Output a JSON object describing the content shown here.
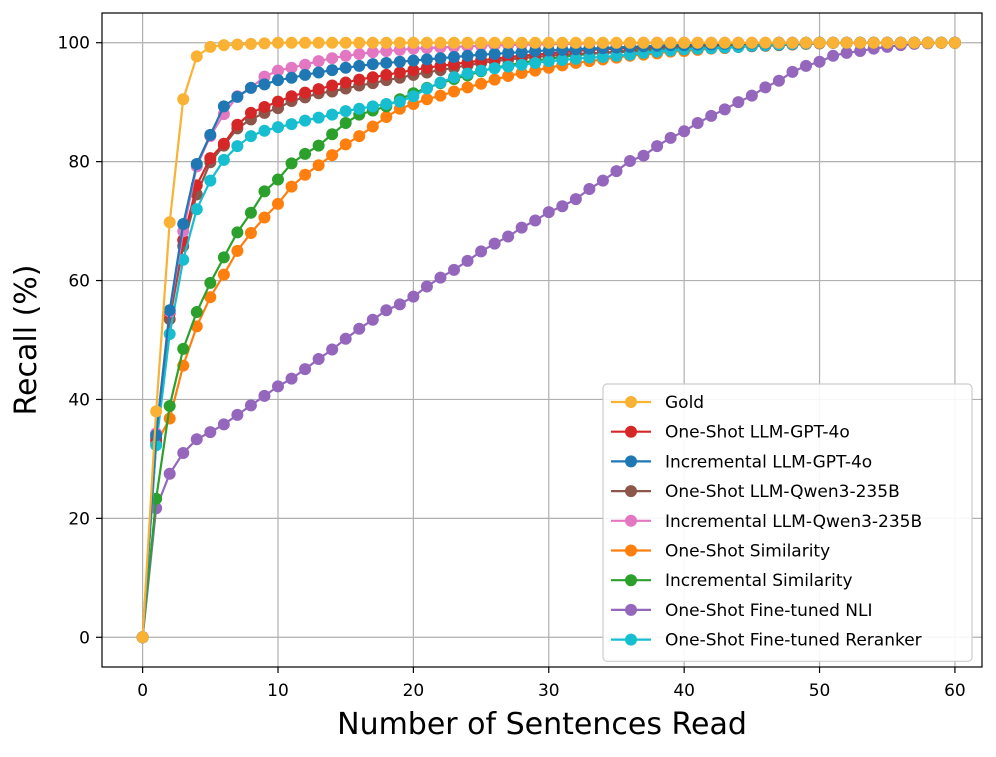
{
  "chart_data": {
    "type": "line",
    "title": "",
    "xlabel": "Number of Sentences Read",
    "ylabel": "Recall (%)",
    "xlim": [
      -3,
      62
    ],
    "ylim": [
      -5,
      105
    ],
    "xticks": [
      0,
      10,
      20,
      30,
      40,
      50,
      60
    ],
    "yticks": [
      0,
      20,
      40,
      60,
      80,
      100
    ],
    "grid": true,
    "legend_position": "lower-right",
    "series": [
      {
        "name": "One-Shot Fine-tuned NLI",
        "color": "#9467bd",
        "x": [
          0,
          1,
          2,
          3,
          4,
          5,
          6,
          7,
          8,
          9,
          10,
          11,
          12,
          13,
          14,
          15,
          16,
          17,
          18,
          19,
          20,
          21,
          22,
          23,
          24,
          25,
          26,
          27,
          28,
          29,
          30,
          31,
          32,
          33,
          34,
          35,
          36,
          37,
          38,
          39,
          40,
          41,
          42,
          43,
          44,
          45,
          46,
          47,
          48,
          49,
          50,
          51,
          52,
          53,
          54,
          55,
          56,
          57,
          58,
          59,
          60
        ],
        "y": [
          0,
          21.7,
          27.5,
          31.0,
          33.3,
          34.5,
          35.8,
          37.4,
          39.0,
          40.6,
          42.2,
          43.5,
          45.1,
          46.8,
          48.4,
          50.2,
          51.9,
          53.4,
          55.0,
          56.0,
          57.3,
          59.0,
          60.5,
          61.8,
          63.3,
          64.9,
          66.2,
          67.4,
          68.9,
          70.1,
          71.5,
          72.5,
          73.7,
          75.4,
          76.8,
          78.4,
          80.1,
          81.0,
          82.6,
          84.0,
          85.1,
          86.5,
          87.7,
          88.8,
          90.0,
          91.1,
          92.5,
          93.6,
          95.1,
          96.1,
          96.8,
          97.8,
          98.3,
          98.6,
          99.0,
          99.3,
          99.6,
          99.8,
          99.9,
          100,
          100
        ]
      },
      {
        "name": "One-Shot Similarity",
        "color": "#ff7f0e",
        "x": [
          0,
          1,
          2,
          3,
          4,
          5,
          6,
          7,
          8,
          9,
          10,
          11,
          12,
          13,
          14,
          15,
          16,
          17,
          18,
          19,
          20,
          21,
          22,
          23,
          24,
          25,
          26,
          27,
          28,
          29,
          30,
          31,
          32,
          33,
          34,
          35,
          36,
          37,
          38,
          39,
          40,
          41,
          42,
          43,
          44,
          45,
          46,
          47,
          48,
          49,
          50,
          51,
          52,
          53,
          54,
          55,
          56,
          57,
          58,
          59,
          60
        ],
        "y": [
          0,
          32.5,
          36.8,
          45.7,
          52.3,
          57.2,
          61.0,
          65.0,
          68.0,
          70.6,
          72.9,
          75.8,
          77.8,
          79.4,
          81.1,
          82.9,
          84.3,
          85.9,
          87.5,
          88.9,
          89.7,
          90.5,
          91.1,
          91.8,
          92.5,
          93.1,
          93.8,
          94.4,
          94.9,
          95.3,
          95.8,
          96.2,
          96.6,
          96.9,
          97.2,
          97.5,
          97.8,
          98.0,
          98.2,
          98.5,
          98.6,
          98.8,
          99.0,
          99.1,
          99.3,
          99.5,
          99.6,
          99.7,
          99.8,
          99.9,
          100,
          100,
          100,
          100,
          100,
          100,
          100,
          100,
          100,
          100,
          100
        ]
      },
      {
        "name": "Incremental Similarity",
        "color": "#2ca02c",
        "x": [
          0,
          1,
          2,
          3,
          4,
          5,
          6,
          7,
          8,
          9,
          10,
          11,
          12,
          13,
          14,
          15,
          16,
          17,
          18,
          19,
          20,
          21,
          22,
          23,
          24,
          25,
          26,
          27,
          28,
          29,
          30,
          31,
          32,
          33,
          34,
          35,
          36,
          37,
          38,
          39,
          40,
          41,
          42,
          43,
          44,
          45,
          46,
          47,
          48,
          49,
          50,
          51,
          52,
          53,
          54,
          55,
          56,
          57,
          58,
          59,
          60
        ],
        "y": [
          0,
          23.3,
          38.9,
          48.5,
          54.7,
          59.6,
          63.9,
          68.1,
          71.4,
          75.0,
          77.0,
          79.7,
          81.3,
          82.7,
          84.6,
          86.5,
          87.9,
          88.6,
          89.3,
          90.5,
          91.5,
          92.4,
          93.2,
          93.9,
          94.5,
          95.2,
          95.8,
          96.2,
          96.6,
          97.0,
          97.3,
          97.6,
          97.9,
          98.1,
          98.3,
          98.5,
          98.7,
          98.9,
          99.0,
          99.1,
          99.2,
          99.3,
          99.4,
          99.5,
          99.6,
          99.7,
          99.7,
          99.8,
          99.9,
          99.9,
          100,
          100,
          100,
          100,
          100,
          100,
          100,
          100,
          100,
          100,
          100
        ]
      },
      {
        "name": "One-Shot LLM-Qwen3-235B",
        "color": "#8c564b",
        "x": [
          0,
          1,
          2,
          3,
          4,
          5,
          6,
          7,
          8,
          9,
          10,
          11,
          12,
          13,
          14,
          15,
          16,
          17,
          18,
          19,
          20,
          21,
          22,
          23,
          24,
          25,
          26,
          27,
          28,
          29,
          30,
          31,
          32,
          33,
          34,
          35,
          36,
          37,
          38,
          39,
          40,
          41,
          42,
          43,
          44,
          45,
          46,
          47,
          48,
          49,
          50,
          51,
          52,
          53,
          54,
          55,
          56,
          57,
          58,
          59,
          60
        ],
        "y": [
          0,
          33.5,
          53.5,
          65.8,
          74.5,
          79.9,
          82.7,
          85.6,
          87.1,
          88.2,
          89.0,
          90.2,
          90.8,
          91.5,
          91.8,
          92.3,
          92.8,
          93.2,
          93.7,
          94.1,
          94.6,
          95.0,
          95.4,
          95.8,
          96.2,
          96.6,
          96.9,
          97.2,
          97.4,
          97.6,
          97.8,
          98.0,
          98.1,
          98.2,
          98.3,
          98.4,
          98.5,
          98.6,
          98.7,
          98.8,
          98.9,
          99.0,
          99.1,
          99.2,
          99.3,
          99.4,
          99.5,
          99.6,
          99.7,
          99.8,
          99.9,
          100,
          100,
          100,
          100,
          100,
          100,
          100,
          100,
          100,
          100
        ]
      },
      {
        "name": "One-Shot LLM-GPT-4o",
        "color": "#d62728",
        "x": [
          0,
          1,
          2,
          3,
          4,
          5,
          6,
          7,
          8,
          9,
          10,
          11,
          12,
          13,
          14,
          15,
          16,
          17,
          18,
          19,
          20,
          21,
          22,
          23,
          24,
          25,
          26,
          27,
          28,
          29,
          30,
          31,
          32,
          33,
          34,
          35,
          36,
          37,
          38,
          39,
          40,
          41,
          42,
          43,
          44,
          45,
          46,
          47,
          48,
          49,
          50,
          51,
          52,
          53,
          54,
          55,
          56,
          57,
          58,
          59,
          60
        ],
        "y": [
          0,
          33.0,
          54.5,
          66.8,
          76.0,
          80.6,
          83.0,
          86.2,
          88.2,
          89.2,
          90.1,
          91.0,
          91.6,
          92.2,
          92.8,
          93.3,
          93.8,
          94.2,
          94.6,
          95.0,
          95.4,
          95.8,
          96.1,
          96.4,
          96.7,
          97.0,
          97.3,
          97.6,
          97.8,
          98.0,
          98.2,
          98.4,
          98.6,
          98.8,
          98.9,
          99.0,
          99.1,
          99.2,
          99.3,
          99.4,
          99.5,
          99.6,
          99.6,
          99.7,
          99.8,
          99.9,
          99.9,
          100,
          100,
          100,
          100,
          100,
          100,
          100,
          100,
          100,
          100,
          100,
          100,
          100,
          100
        ]
      },
      {
        "name": "One-Shot Fine-tuned Reranker",
        "color": "#17becf",
        "x": [
          0,
          1,
          2,
          3,
          4,
          5,
          6,
          7,
          8,
          9,
          10,
          11,
          12,
          13,
          14,
          15,
          16,
          17,
          18,
          19,
          20,
          21,
          22,
          23,
          24,
          25,
          26,
          27,
          28,
          29,
          30,
          31,
          32,
          33,
          34,
          35,
          36,
          37,
          38,
          39,
          40,
          41,
          42,
          43,
          44,
          45,
          46,
          47,
          48,
          49,
          50,
          51,
          52,
          53,
          54,
          55,
          56,
          57,
          58,
          59,
          60
        ],
        "y": [
          0,
          32.3,
          51.0,
          63.5,
          72.0,
          76.8,
          80.3,
          82.6,
          84.3,
          85.2,
          85.8,
          86.3,
          86.9,
          87.4,
          87.9,
          88.5,
          88.9,
          89.3,
          89.7,
          90.1,
          91.0,
          92.3,
          93.3,
          94.2,
          94.8,
          95.3,
          95.7,
          96.0,
          96.3,
          96.6,
          96.9,
          97.1,
          97.3,
          97.5,
          97.6,
          97.8,
          98.0,
          98.3,
          98.5,
          98.7,
          98.9,
          99.0,
          99.1,
          99.2,
          99.3,
          99.5,
          99.6,
          99.7,
          99.8,
          99.9,
          100,
          100,
          100,
          100,
          100,
          100,
          100,
          100,
          100,
          100,
          100
        ]
      },
      {
        "name": "Incremental LLM-Qwen3-235B",
        "color": "#e377c2",
        "x": [
          0,
          1,
          2,
          3,
          4,
          5,
          6,
          7,
          8,
          9,
          10,
          11,
          12,
          13,
          14,
          15,
          16,
          17,
          18,
          19,
          20,
          21,
          22,
          23,
          24,
          25,
          26,
          27,
          28,
          29,
          30,
          31,
          32,
          33,
          34,
          35,
          36,
          37,
          38,
          39,
          40,
          41,
          42,
          43,
          44,
          45,
          46,
          47,
          48,
          49,
          50,
          51,
          52,
          53,
          54,
          55,
          56,
          57,
          58,
          59,
          60
        ],
        "y": [
          0,
          34.3,
          54.8,
          68.3,
          79.2,
          84.3,
          88.0,
          91.0,
          92.4,
          94.3,
          95.3,
          95.8,
          96.3,
          96.9,
          97.4,
          97.8,
          98.1,
          98.4,
          98.6,
          98.8,
          99.0,
          99.1,
          99.2,
          99.3,
          99.4,
          99.5,
          99.6,
          99.6,
          99.7,
          99.7,
          99.8,
          99.8,
          99.8,
          99.9,
          99.9,
          99.9,
          99.9,
          100,
          100,
          100,
          100,
          100,
          100,
          100,
          100,
          100,
          100,
          100,
          100,
          100,
          100,
          100,
          100,
          100,
          100,
          100,
          100,
          100,
          100,
          100,
          100
        ]
      },
      {
        "name": "Incremental LLM-GPT-4o",
        "color": "#1f77b4",
        "x": [
          0,
          1,
          2,
          3,
          4,
          5,
          6,
          7,
          8,
          9,
          10,
          11,
          12,
          13,
          14,
          15,
          16,
          17,
          18,
          19,
          20,
          21,
          22,
          23,
          24,
          25,
          26,
          27,
          28,
          29,
          30,
          31,
          32,
          33,
          34,
          35,
          36,
          37,
          38,
          39,
          40,
          41,
          42,
          43,
          44,
          45,
          46,
          47,
          48,
          49,
          50,
          51,
          52,
          53,
          54,
          55,
          56,
          57,
          58,
          59,
          60
        ],
        "y": [
          0,
          34.0,
          55.0,
          69.5,
          79.6,
          84.5,
          89.3,
          90.9,
          92.4,
          93.0,
          93.7,
          94.1,
          94.6,
          95.0,
          95.4,
          95.8,
          96.1,
          96.4,
          96.6,
          96.8,
          97.0,
          97.2,
          97.4,
          97.6,
          97.8,
          98.0,
          98.1,
          98.3,
          98.4,
          98.6,
          98.7,
          98.8,
          98.9,
          99.0,
          99.1,
          99.2,
          99.3,
          99.4,
          99.5,
          99.6,
          99.6,
          99.7,
          99.7,
          99.8,
          99.8,
          99.9,
          99.9,
          100,
          100,
          100,
          100,
          100,
          100,
          100,
          100,
          100,
          100,
          100,
          100,
          100,
          100
        ]
      },
      {
        "name": "Gold",
        "color": "#f9b233",
        "x": [
          0,
          1,
          2,
          3,
          4,
          5,
          6,
          7,
          8,
          9,
          10,
          11,
          12,
          13,
          14,
          15,
          16,
          17,
          18,
          19,
          20,
          21,
          22,
          23,
          24,
          25,
          26,
          27,
          28,
          29,
          30,
          31,
          32,
          33,
          34,
          35,
          36,
          37,
          38,
          39,
          40,
          41,
          42,
          43,
          44,
          45,
          46,
          47,
          48,
          49,
          50,
          51,
          52,
          53,
          54,
          55,
          56,
          57,
          58,
          59,
          60
        ],
        "y": [
          0,
          38.0,
          69.8,
          90.5,
          97.7,
          99.3,
          99.6,
          99.7,
          99.8,
          99.9,
          100,
          100,
          100,
          100,
          100,
          100,
          100,
          100,
          100,
          100,
          100,
          100,
          100,
          100,
          100,
          100,
          100,
          100,
          100,
          100,
          100,
          100,
          100,
          100,
          100,
          100,
          100,
          100,
          100,
          100,
          100,
          100,
          100,
          100,
          100,
          100,
          100,
          100,
          100,
          100,
          100,
          100,
          100,
          100,
          100,
          100,
          100,
          100,
          100,
          100,
          100
        ]
      }
    ],
    "legend_order": [
      "Gold",
      "One-Shot LLM-GPT-4o",
      "Incremental LLM-GPT-4o",
      "One-Shot LLM-Qwen3-235B",
      "Incremental LLM-Qwen3-235B",
      "One-Shot Similarity",
      "Incremental Similarity",
      "One-Shot Fine-tuned NLI",
      "One-Shot Fine-tuned Reranker"
    ]
  }
}
